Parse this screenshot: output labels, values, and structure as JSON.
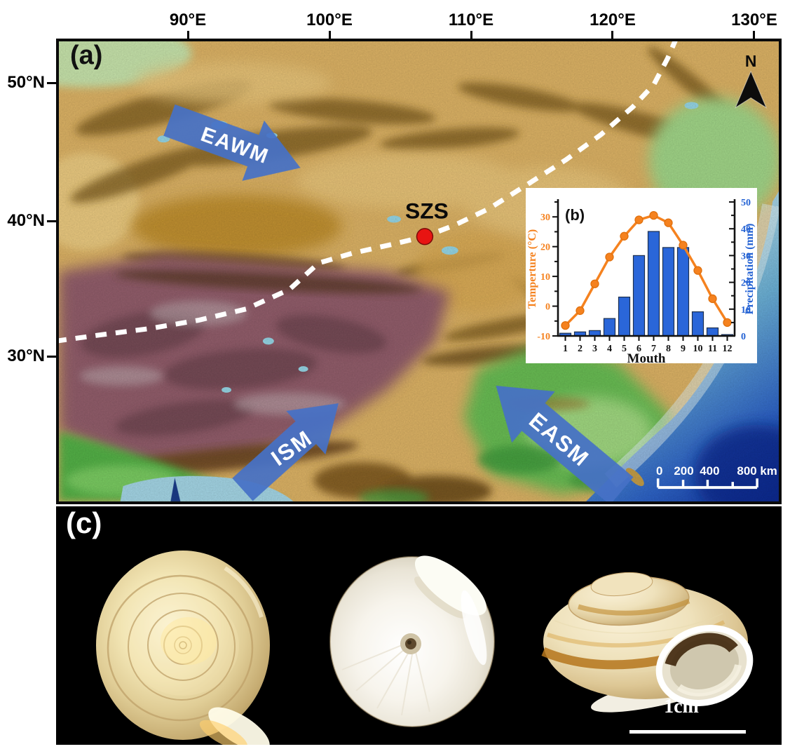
{
  "panel_a": {
    "label": "(a)",
    "lon_ticks": [
      "90°E",
      "100°E",
      "110°E",
      "120°E",
      "130°E"
    ],
    "lat_ticks": [
      "50°N",
      "40°N",
      "30°N"
    ],
    "site": {
      "name": "SZS",
      "marker_color": "#e81412"
    },
    "arrows": {
      "eawm": "EAWM",
      "ism": "ISM",
      "easm": "EASM",
      "color": "#4671c6"
    },
    "north_label": "N",
    "scalebar": {
      "labels": [
        "0",
        "200",
        "400",
        "800 km"
      ]
    },
    "dashed_line_name": "monsoon-boundary"
  },
  "chart_data": {
    "type": "line+bar",
    "panel_label": "(b)",
    "categories": [
      1,
      2,
      3,
      4,
      5,
      6,
      7,
      8,
      9,
      10,
      11,
      12
    ],
    "xlabel": "Mouth",
    "left_axis": {
      "label": "Temperture (°C)",
      "range": [
        -10,
        35
      ],
      "ticks": [
        -10,
        0,
        10,
        20,
        30
      ],
      "minor_step": 5,
      "color": "#f5821f"
    },
    "right_axis": {
      "label": "Precipitation (mm)",
      "range": [
        0,
        50
      ],
      "ticks": [
        0,
        10,
        20,
        30,
        40,
        50
      ],
      "minor_step": 5,
      "color": "#2563d4"
    },
    "series": [
      {
        "name": "Temperature",
        "type": "line",
        "axis": "left",
        "color": "#f5821f",
        "marker_edge": "#e0700d",
        "values": [
          -6.5,
          -1.5,
          7.5,
          16.5,
          23.5,
          29,
          30.5,
          28,
          20.5,
          12,
          2.5,
          -5.5
        ]
      },
      {
        "name": "Precipitation",
        "type": "bar",
        "axis": "right",
        "color": "#2a66d9",
        "edge": "#1c3050",
        "values": [
          1,
          1.5,
          2,
          6.5,
          14.5,
          30,
          39,
          33,
          33,
          9,
          3,
          0.5
        ]
      }
    ],
    "grid": false,
    "legend_position": "none"
  },
  "panel_c": {
    "label": "(c)",
    "scale_label": "1cm",
    "shell_views": [
      "apical view",
      "umbilical view",
      "apertural view"
    ]
  }
}
